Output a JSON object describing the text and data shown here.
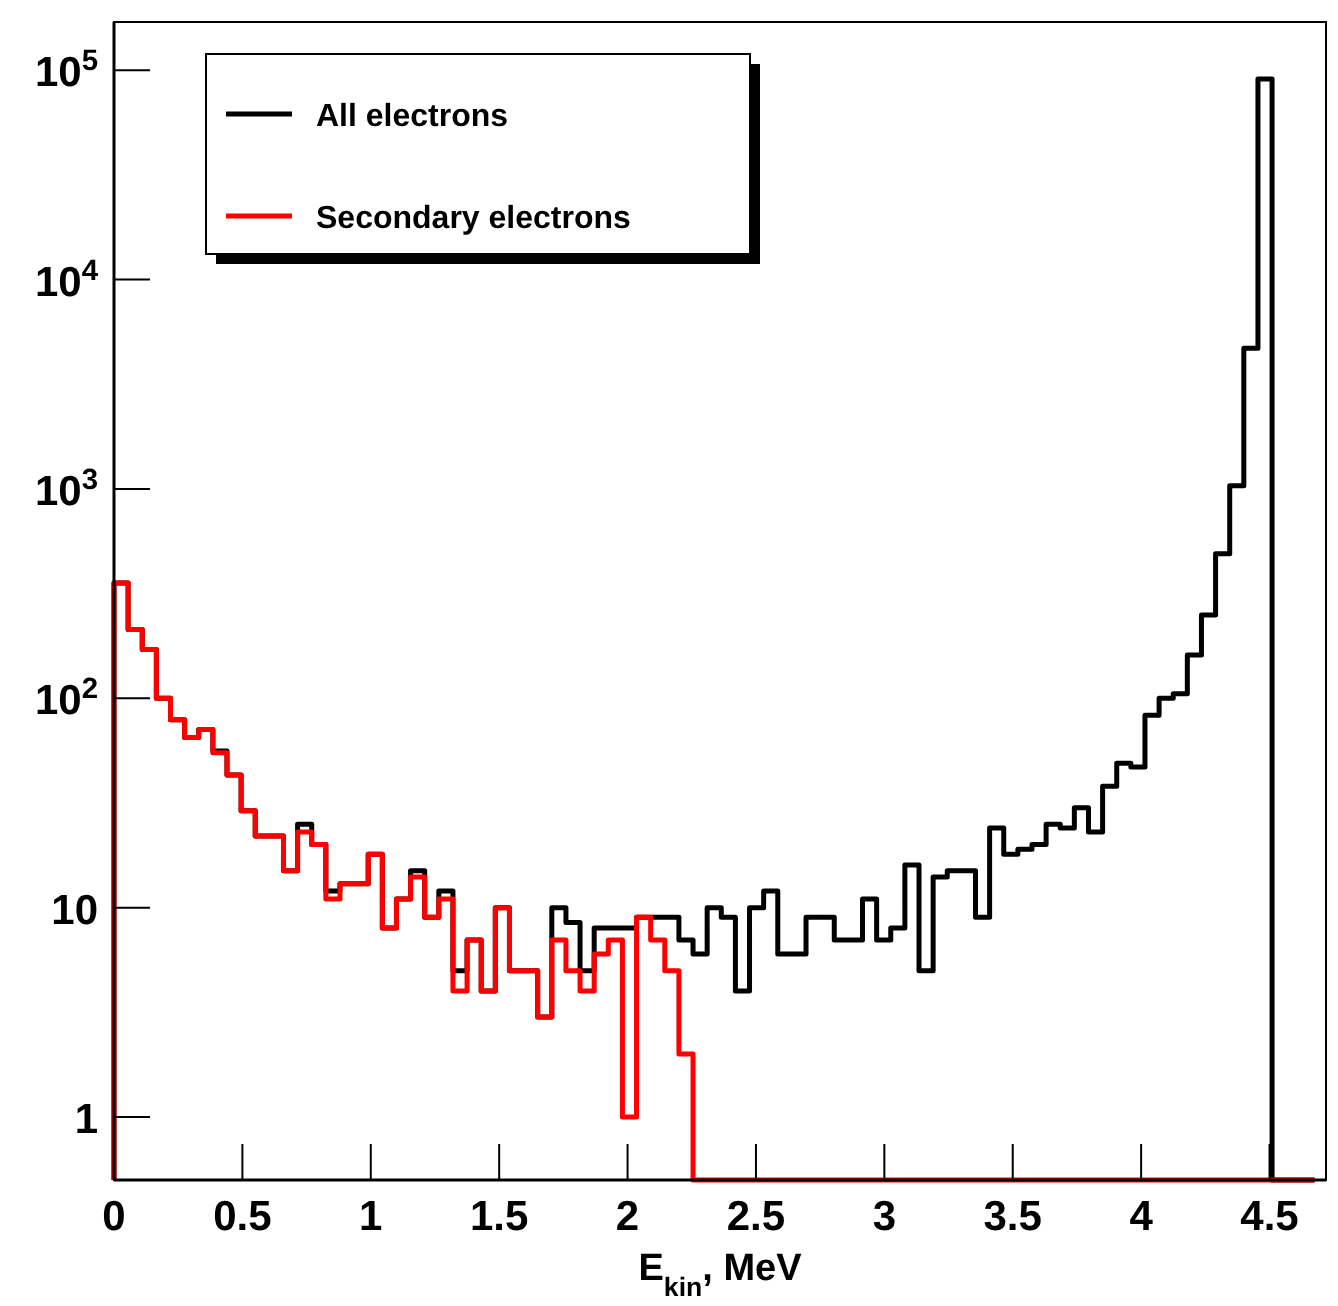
{
  "chart_data": {
    "type": "histogram",
    "xlabel": "E$_{kin}$, MeV",
    "log": "y",
    "legend": "top left",
    "grid": false,
    "bins": [
      0,
      0.055,
      0.11,
      0.165,
      0.22,
      0.275,
      0.33,
      0.385,
      0.44,
      0.495,
      0.55,
      0.605,
      0.66,
      0.715,
      0.77,
      0.825,
      0.88,
      0.935,
      0.99,
      1.045,
      1.1,
      1.155,
      1.21,
      1.265,
      1.32,
      1.375,
      1.43,
      1.485,
      1.54,
      1.595,
      1.65,
      1.705,
      1.76,
      1.815,
      1.87,
      1.925,
      1.98,
      2.035,
      2.09,
      2.145,
      2.2,
      2.255,
      2.31,
      2.365,
      2.42,
      2.475,
      2.53,
      2.585,
      2.64,
      2.695,
      2.75,
      2.805,
      2.86,
      2.915,
      2.97,
      3.025,
      3.08,
      3.135,
      3.19,
      3.245,
      3.3,
      3.355,
      3.41,
      3.465,
      3.52,
      3.575,
      3.63,
      3.685,
      3.74,
      3.795,
      3.85,
      3.905,
      3.96,
      4.015,
      4.07,
      4.125,
      4.18,
      4.235,
      4.29,
      4.345,
      4.4,
      4.455,
      4.51,
      4.565,
      4.62,
      4.675
    ],
    "series": [
      {
        "name": "All electrons",
        "color": "#000000",
        "values": [
          355,
          213,
          171,
          100,
          79,
          65,
          71,
          56,
          43,
          29,
          22,
          22,
          15,
          25,
          20,
          12,
          13,
          13,
          18,
          8,
          11,
          15,
          9,
          12,
          5,
          7,
          4,
          10,
          5,
          5,
          3,
          10,
          8.5,
          5,
          8,
          8,
          8,
          9,
          9,
          9,
          7,
          6,
          10,
          9,
          4,
          10,
          12,
          6,
          6,
          9,
          9,
          7,
          7,
          11,
          7,
          8,
          16,
          5,
          14,
          15,
          15,
          9,
          24,
          18,
          19,
          20,
          25,
          24,
          30,
          23,
          38,
          49,
          47,
          83,
          100,
          105,
          161,
          250,
          490,
          1035,
          4700,
          90800,
          null,
          null,
          null
        ]
      },
      {
        "name": "Secondary electrons",
        "color": "#ff0000",
        "values": [
          355,
          213,
          171,
          100,
          79,
          65,
          71,
          55,
          43,
          29,
          22,
          22,
          15,
          23,
          20,
          11,
          13,
          13,
          18,
          8,
          11,
          14,
          9,
          11,
          4,
          7,
          4,
          10,
          5,
          5,
          3,
          7,
          5,
          4,
          6,
          7,
          1,
          9,
          7,
          5,
          2,
          null,
          null,
          null,
          null,
          null,
          null,
          null,
          null,
          null,
          null,
          null,
          null,
          null,
          null,
          null,
          null,
          null,
          null,
          null,
          null,
          null,
          null,
          null,
          null,
          null,
          null,
          null,
          null,
          null,
          null,
          null,
          null,
          null,
          null,
          null,
          null,
          null,
          null,
          null,
          null,
          null,
          null,
          null,
          null
        ]
      }
    ],
    "xlim": [
      0,
      4.72
    ],
    "xticks": [
      0,
      0.5,
      1,
      1.5,
      2,
      2.5,
      3,
      3.5,
      4,
      4.5
    ],
    "ylim": [
      0.5,
      170000
    ],
    "yticks": [
      1,
      10,
      {
        "value": 100,
        "label": "10$^{2}$"
      },
      {
        "value": 1000,
        "label": "10$^{3}$"
      },
      {
        "value": 10000,
        "label": "10$^{4}$"
      },
      {
        "value": 100000,
        "label": "10$^{5}$"
      }
    ]
  }
}
